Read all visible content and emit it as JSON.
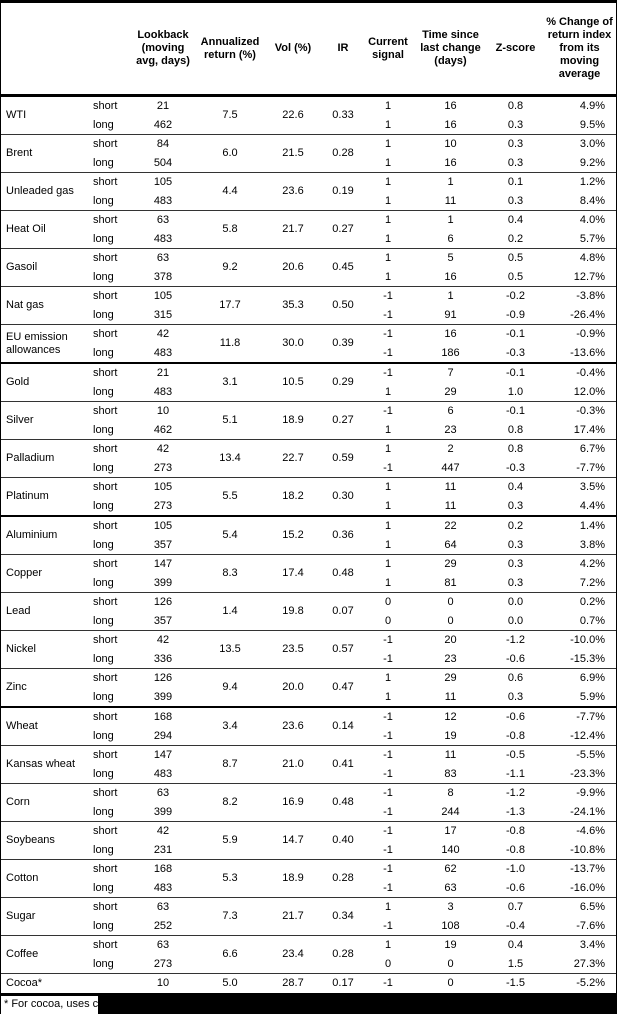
{
  "header": {
    "columns": [
      "",
      "",
      "Lookback (moving avg, days)",
      "Annualized return (%)",
      "Vol (%)",
      "IR",
      "Current signal",
      "Time since last change (days)",
      "Z-score",
      "% Change of return index from its moving average"
    ]
  },
  "sections": [
    {
      "commodities": [
        {
          "name": "WTI",
          "ann": "7.5",
          "vol": "22.6",
          "ir": "0.33",
          "legs": [
            {
              "h": "short",
              "lb": "21",
              "sig": "1",
              "days": "16",
              "z": "0.8",
              "pct": "4.9%"
            },
            {
              "h": "long",
              "lb": "462",
              "sig": "1",
              "days": "16",
              "z": "0.3",
              "pct": "9.5%"
            }
          ]
        },
        {
          "name": "Brent",
          "ann": "6.0",
          "vol": "21.5",
          "ir": "0.28",
          "legs": [
            {
              "h": "short",
              "lb": "84",
              "sig": "1",
              "days": "10",
              "z": "0.3",
              "pct": "3.0%"
            },
            {
              "h": "long",
              "lb": "504",
              "sig": "1",
              "days": "16",
              "z": "0.3",
              "pct": "9.2%"
            }
          ]
        },
        {
          "name": "Unleaded gas",
          "ann": "4.4",
          "vol": "23.6",
          "ir": "0.19",
          "legs": [
            {
              "h": "short",
              "lb": "105",
              "sig": "1",
              "days": "1",
              "z": "0.1",
              "pct": "1.2%"
            },
            {
              "h": "long",
              "lb": "483",
              "sig": "1",
              "days": "11",
              "z": "0.3",
              "pct": "8.4%"
            }
          ]
        },
        {
          "name": "Heat Oil",
          "ann": "5.8",
          "vol": "21.7",
          "ir": "0.27",
          "legs": [
            {
              "h": "short",
              "lb": "63",
              "sig": "1",
              "days": "1",
              "z": "0.4",
              "pct": "4.0%"
            },
            {
              "h": "long",
              "lb": "483",
              "sig": "1",
              "days": "6",
              "z": "0.2",
              "pct": "5.7%"
            }
          ]
        },
        {
          "name": "Gasoil",
          "ann": "9.2",
          "vol": "20.6",
          "ir": "0.45",
          "legs": [
            {
              "h": "short",
              "lb": "63",
              "sig": "1",
              "days": "5",
              "z": "0.5",
              "pct": "4.8%"
            },
            {
              "h": "long",
              "lb": "378",
              "sig": "1",
              "days": "16",
              "z": "0.5",
              "pct": "12.7%"
            }
          ]
        },
        {
          "name": "Nat gas",
          "ann": "17.7",
          "vol": "35.3",
          "ir": "0.50",
          "legs": [
            {
              "h": "short",
              "lb": "105",
              "sig": "-1",
              "days": "1",
              "z": "-0.2",
              "pct": "-3.8%"
            },
            {
              "h": "long",
              "lb": "315",
              "sig": "-1",
              "days": "91",
              "z": "-0.9",
              "pct": "-26.4%"
            }
          ]
        },
        {
          "name": "EU emission allowances",
          "ann": "11.8",
          "vol": "30.0",
          "ir": "0.39",
          "legs": [
            {
              "h": "short",
              "lb": "42",
              "sig": "-1",
              "days": "16",
              "z": "-0.1",
              "pct": "-0.9%"
            },
            {
              "h": "long",
              "lb": "483",
              "sig": "-1",
              "days": "186",
              "z": "-0.3",
              "pct": "-13.6%"
            }
          ]
        }
      ]
    },
    {
      "commodities": [
        {
          "name": "Gold",
          "ann": "3.1",
          "vol": "10.5",
          "ir": "0.29",
          "legs": [
            {
              "h": "short",
              "lb": "21",
              "sig": "-1",
              "days": "7",
              "z": "-0.1",
              "pct": "-0.4%"
            },
            {
              "h": "long",
              "lb": "483",
              "sig": "1",
              "days": "29",
              "z": "1.0",
              "pct": "12.0%"
            }
          ]
        },
        {
          "name": "Silver",
          "ann": "5.1",
          "vol": "18.9",
          "ir": "0.27",
          "legs": [
            {
              "h": "short",
              "lb": "10",
              "sig": "-1",
              "days": "6",
              "z": "-0.1",
              "pct": "-0.3%"
            },
            {
              "h": "long",
              "lb": "462",
              "sig": "1",
              "days": "23",
              "z": "0.8",
              "pct": "17.4%"
            }
          ]
        },
        {
          "name": "Palladium",
          "ann": "13.4",
          "vol": "22.7",
          "ir": "0.59",
          "legs": [
            {
              "h": "short",
              "lb": "42",
              "sig": "1",
              "days": "2",
              "z": "0.8",
              "pct": "6.7%"
            },
            {
              "h": "long",
              "lb": "273",
              "sig": "-1",
              "days": "447",
              "z": "-0.3",
              "pct": "-7.7%"
            }
          ]
        },
        {
          "name": "Platinum",
          "ann": "5.5",
          "vol": "18.2",
          "ir": "0.30",
          "legs": [
            {
              "h": "short",
              "lb": "105",
              "sig": "1",
              "days": "11",
              "z": "0.4",
              "pct": "3.5%"
            },
            {
              "h": "long",
              "lb": "273",
              "sig": "1",
              "days": "11",
              "z": "0.3",
              "pct": "4.4%"
            }
          ]
        }
      ]
    },
    {
      "commodities": [
        {
          "name": "Aluminium",
          "ann": "5.4",
          "vol": "15.2",
          "ir": "0.36",
          "legs": [
            {
              "h": "short",
              "lb": "105",
              "sig": "1",
              "days": "22",
              "z": "0.2",
              "pct": "1.4%"
            },
            {
              "h": "long",
              "lb": "357",
              "sig": "1",
              "days": "64",
              "z": "0.3",
              "pct": "3.8%"
            }
          ]
        },
        {
          "name": "Copper",
          "ann": "8.3",
          "vol": "17.4",
          "ir": "0.48",
          "legs": [
            {
              "h": "short",
              "lb": "147",
              "sig": "1",
              "days": "29",
              "z": "0.3",
              "pct": "4.2%"
            },
            {
              "h": "long",
              "lb": "399",
              "sig": "1",
              "days": "81",
              "z": "0.3",
              "pct": "7.2%"
            }
          ]
        },
        {
          "name": "Lead",
          "ann": "1.4",
          "vol": "19.8",
          "ir": "0.07",
          "legs": [
            {
              "h": "short",
              "lb": "126",
              "sig": "0",
              "days": "0",
              "z": "0.0",
              "pct": "0.2%"
            },
            {
              "h": "long",
              "lb": "357",
              "sig": "0",
              "days": "0",
              "z": "0.0",
              "pct": "0.7%"
            }
          ]
        },
        {
          "name": "Nickel",
          "ann": "13.5",
          "vol": "23.5",
          "ir": "0.57",
          "legs": [
            {
              "h": "short",
              "lb": "42",
              "sig": "-1",
              "days": "20",
              "z": "-1.2",
              "pct": "-10.0%"
            },
            {
              "h": "long",
              "lb": "336",
              "sig": "-1",
              "days": "23",
              "z": "-0.6",
              "pct": "-15.3%"
            }
          ]
        },
        {
          "name": "Zinc",
          "ann": "9.4",
          "vol": "20.0",
          "ir": "0.47",
          "legs": [
            {
              "h": "short",
              "lb": "126",
              "sig": "1",
              "days": "29",
              "z": "0.6",
              "pct": "6.9%"
            },
            {
              "h": "long",
              "lb": "399",
              "sig": "1",
              "days": "11",
              "z": "0.3",
              "pct": "5.9%"
            }
          ]
        }
      ]
    },
    {
      "commodities": [
        {
          "name": "Wheat",
          "ann": "3.4",
          "vol": "23.6",
          "ir": "0.14",
          "legs": [
            {
              "h": "short",
              "lb": "168",
              "sig": "-1",
              "days": "12",
              "z": "-0.6",
              "pct": "-7.7%"
            },
            {
              "h": "long",
              "lb": "294",
              "sig": "-1",
              "days": "19",
              "z": "-0.8",
              "pct": "-12.4%"
            }
          ]
        },
        {
          "name": "Kansas wheat",
          "ann": "8.7",
          "vol": "21.0",
          "ir": "0.41",
          "legs": [
            {
              "h": "short",
              "lb": "147",
              "sig": "-1",
              "days": "11",
              "z": "-0.5",
              "pct": "-5.5%"
            },
            {
              "h": "long",
              "lb": "483",
              "sig": "-1",
              "days": "83",
              "z": "-1.1",
              "pct": "-23.3%"
            }
          ]
        },
        {
          "name": "Corn",
          "ann": "8.2",
          "vol": "16.9",
          "ir": "0.48",
          "legs": [
            {
              "h": "short",
              "lb": "63",
              "sig": "-1",
              "days": "8",
              "z": "-1.2",
              "pct": "-9.9%"
            },
            {
              "h": "long",
              "lb": "399",
              "sig": "-1",
              "days": "244",
              "z": "-1.3",
              "pct": "-24.1%"
            }
          ]
        },
        {
          "name": "Soybeans",
          "ann": "5.9",
          "vol": "14.7",
          "ir": "0.40",
          "legs": [
            {
              "h": "short",
              "lb": "42",
              "sig": "-1",
              "days": "17",
              "z": "-0.8",
              "pct": "-4.6%"
            },
            {
              "h": "long",
              "lb": "231",
              "sig": "-1",
              "days": "140",
              "z": "-0.8",
              "pct": "-10.8%"
            }
          ]
        },
        {
          "name": "Cotton",
          "ann": "5.3",
          "vol": "18.9",
          "ir": "0.28",
          "legs": [
            {
              "h": "short",
              "lb": "168",
              "sig": "-1",
              "days": "62",
              "z": "-1.0",
              "pct": "-13.7%"
            },
            {
              "h": "long",
              "lb": "483",
              "sig": "-1",
              "days": "63",
              "z": "-0.6",
              "pct": "-16.0%"
            }
          ]
        },
        {
          "name": "Sugar",
          "ann": "7.3",
          "vol": "21.7",
          "ir": "0.34",
          "legs": [
            {
              "h": "short",
              "lb": "63",
              "sig": "1",
              "days": "3",
              "z": "0.7",
              "pct": "6.5%"
            },
            {
              "h": "long",
              "lb": "252",
              "sig": "-1",
              "days": "108",
              "z": "-0.4",
              "pct": "-7.6%"
            }
          ]
        },
        {
          "name": "Coffee",
          "ann": "6.6",
          "vol": "23.4",
          "ir": "0.28",
          "legs": [
            {
              "h": "short",
              "lb": "63",
              "sig": "1",
              "days": "19",
              "z": "0.4",
              "pct": "3.4%"
            },
            {
              "h": "long",
              "lb": "273",
              "sig": "0",
              "days": "0",
              "z": "1.5",
              "pct": "27.3%"
            }
          ]
        },
        {
          "name": "Cocoa*",
          "ann": "5.0",
          "vol": "28.7",
          "ir": "0.17",
          "legs": [
            {
              "h": "",
              "lb": "10",
              "sig": "-1",
              "days": "0",
              "z": "-1.5",
              "pct": "-5.2%"
            }
          ]
        }
      ]
    }
  ],
  "footnote": {
    "visible_text": "* For cocoa, uses c"
  }
}
